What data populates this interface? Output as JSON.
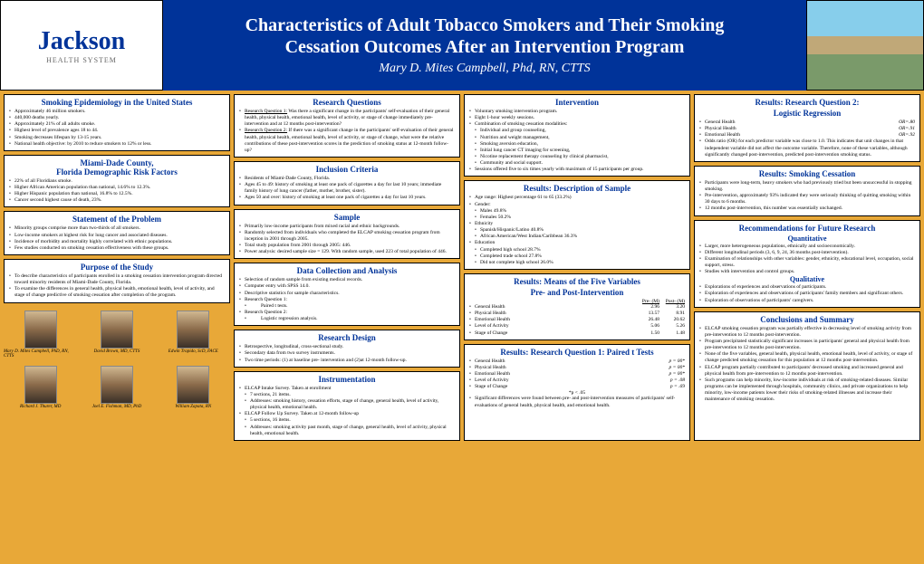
{
  "logo": {
    "main": "Jackson",
    "sub": "HEALTH SYSTEM"
  },
  "title": {
    "line1": "Characteristics of Adult Tobacco Smokers and Their Smoking",
    "line2": "Cessation Outcomes After an Intervention Program",
    "author": "Mary D. Mites Campbell, Phd, RN, CTTS"
  },
  "epi": {
    "h": "Smoking Epidemiology in the United States",
    "items": [
      "Approximately 46 million smokers.",
      "440,000 deaths yearly.",
      "Approximately 21% of all adults smoke.",
      "Highest level of prevalence ages 18 to 44.",
      "Smoking decreases lifespan by 13-15 years.",
      "National health objective: by 2010 to reduce smokers to 12% or less."
    ]
  },
  "miami": {
    "h": "Miami-Dade County,\nFlorida Demographic Risk Factors",
    "items": [
      "22% of all Floridians smoke.",
      "Higher African American population than national, 14.6% to 12.3%.",
      "Higher Hispanic population than national, 16.8% to 12.5%.",
      "Cancer second highest cause of death, 23%."
    ]
  },
  "problem": {
    "h": "Statement of the Problem",
    "items": [
      "Minority groups comprise more than two-thirds of all smokers.",
      "Low-income smokers at highest risk for lung cancer and associated diseases.",
      "Incidence of morbidity and mortality highly correlated with ethnic populations.",
      "Few studies conducted on smoking cessation effectiveness with these groups."
    ]
  },
  "purpose": {
    "h": "Purpose of the Study",
    "items": [
      "To describe characteristics of participants enrolled in a smoking cessation intervention program directed toward minority residents of Miami-Dade County, Florida.",
      "To examine the differences in general health, physical health, emotional health, level of activity, and stage of change predictive of smoking cessation after completion of the program."
    ]
  },
  "people": {
    "row1": [
      {
        "name": "Mary D. Mites Campbell, PhD, RN, CTTS"
      },
      {
        "name": "David Brown, MD, CTTS"
      },
      {
        "name": "Edwin Trapido, ScD, FACE"
      }
    ],
    "row2": [
      {
        "name": "Richard J. Thurer, MD"
      },
      {
        "name": "Joel E. Fishman, MD, PhD"
      },
      {
        "name": "William Zapata, RN"
      }
    ]
  },
  "rq": {
    "h": "Research Questions",
    "q1": "Research Question 1:",
    "q1t": " Was there a significant change in the participants' self-evaluation of their general health, physical health, emotional health, level of activity, or stage of change immediately pre-intervention and at 12 months post-intervention?",
    "q2": "Research Question 2:",
    "q2t": " If there was a significant change in the participants' self-evaluation of their general health, physical health, emotional health, level of activity, or stage of change, what were the relative contributions of these post-intervention scores in the prediction of smoking status at 12-month follow-up?"
  },
  "incl": {
    "h": "Inclusion Criteria",
    "items": [
      "Residents of Miami-Dade County, Florida.",
      "Ages 45 to 49: history of smoking at least one pack of cigarettes a day for last 10 years; immediate family history of lung cancer (father, mother, brother, sister).",
      "Ages 50 and over: history of smoking at least one pack of cigarettes a day for last 10 years."
    ]
  },
  "sample": {
    "h": "Sample",
    "items": [
      "Primarily low-income participants from mixed racial and ethnic backgrounds.",
      "Randomly selected from individuals who completed the ELCAP smoking cessation program from inception in 2001 through 2005.",
      "Total study population from 2001 through 2005: 446.",
      "Power analysis: desired sample size = 129. With random sample, used 223 of total population of 446."
    ]
  },
  "data": {
    "h": "Data Collection and Analysis",
    "items": [
      "Selection of random sample from existing medical records.",
      "Computer entry with SPSS 14.0.",
      "Descriptive statistics for sample characteristics.",
      "Research Question 1:",
      "Paired t tests.",
      "Research Question 2:",
      "Logistic regression analysis."
    ]
  },
  "design": {
    "h": "Research Design",
    "items": [
      "Retrospective, longitudinal, cross-sectional study.",
      "Secondary data from two survey instruments.",
      "Two time periods: (1) at baseline pre- intervention and (2)at 12-month follow-up."
    ]
  },
  "instr": {
    "h": "Instrumentation",
    "items": [
      "ELCAP Intake Survey. Taken at enrollment",
      "7 sections, 21 items.",
      "Addresses: smoking history, cessation efforts, stage of change, general health, level of activity, physical health, emotional health.",
      "ELCAP Follow Up Survey. Taken at 12-month follow-up",
      "5 sections, 16 items.",
      "Addresses: smoking activity past month, stage of change, general health, level of activity, physical health, emotional health."
    ]
  },
  "interv": {
    "h": "Intervention",
    "items": [
      "Voluntary smoking intervention program.",
      "Eight 1-hour weekly sessions.",
      "Combination of smoking cessation modalities:",
      "Individual and group counseling,",
      "Nutrition and weight management,",
      "Smoking aversion education,",
      "Initial lung cancer CT imaging for screening,",
      "Nicotine replacement therapy counseling by clinical pharmacist,",
      "Community and social support.",
      "Sessions offered five to six times yearly with maximum of 15 participants per group."
    ]
  },
  "desc": {
    "h": "Results: Description of Sample",
    "items": [
      "Age range: Highest percentage 61 to 65 (33.2%)",
      "Gender:",
      "Males        49.8%",
      "Females    50.2%",
      "Ethnicity",
      "Spanish/Hispanic/Latino 40.8%",
      "African American/West Indian/Caribbean 36.3%",
      "Education",
      "Completed high school 28.7%",
      "Completed trade school 27.8%",
      "Did not complete high school 26.0%"
    ]
  },
  "means": {
    "h": "Results: Means of the Five Variables",
    "h2": "Pre- and Post-Intervention",
    "hdr": {
      "c1": "Pre- (M)",
      "c2": "Post- (M)"
    },
    "rows": [
      {
        "l": "General Health",
        "v1": "2.96",
        "v2": "3.20"
      },
      {
        "l": "Physical Health",
        "v1": "13.57",
        "v2": "8.91"
      },
      {
        "l": "Emotional Health",
        "v1": "26.48",
        "v2": "20.62"
      },
      {
        "l": "Level of Activity",
        "v1": "5.06",
        "v2": "5.26"
      },
      {
        "l": "Stage of Change",
        "v1": "1.50",
        "v2": "1.48"
      }
    ]
  },
  "rq1": {
    "h": "Results: Research Question 1: Paired t Tests",
    "rows": [
      {
        "l": "General Health",
        "p": "p = 00*"
      },
      {
        "l": "Physical Health",
        "p": "p = 00*"
      },
      {
        "l": "Emotional Health",
        "p": "p = 00*"
      },
      {
        "l": "Level of Activity",
        "p": "p = .08"
      },
      {
        "l": "Stage of Change",
        "p": "p = .69"
      }
    ],
    "note": "*p < .05",
    "sig": "Significant differences were found between pre- and post-intervention measures of participants' self-evaluations of general health, physical health, and emotional health."
  },
  "rq2": {
    "h": "Results: Research Question 2:",
    "h2": "Logistic Regression",
    "rows": [
      {
        "l": "General Health",
        "r": "OR=.80"
      },
      {
        "l": "Physical Health",
        "r": "OR=.91"
      },
      {
        "l": "Emotional Health",
        "r": "OR=.92"
      }
    ],
    "items": [
      "Odds ratio (OR) for each predictor variable was close to 1.0. This indicates that unit changes in that independent variable did not affect the outcome variable. Therefore, none of these variables, although significantly changed post-intervention, predicted post-intervention smoking status."
    ]
  },
  "cess": {
    "h": "Results: Smoking Cessation",
    "items": [
      "Participants were long-term, heavy smokers who had previously tried but been unsuccessful in stopping smoking.",
      "Pre-intervention, approximately 93% indicated they were seriously thinking of quitting smoking within 30 days to 6 months.",
      "12 months post-intervention, this number was essentially unchanged."
    ]
  },
  "rec": {
    "h": "Recommendations for Future Research",
    "quant": "Quantitative",
    "quanti": [
      "Larger, more heterogeneous populations, ethnically and socioeconomically.",
      "Different longitudinal periods (3, 6, 9, 24, 36 months post-intervention).",
      "Examination of relationships with other variables: gender, ethnicity, educational level, occupation, social support, stress.",
      "Studies with intervention and control groups."
    ],
    "qual": "Qualitative",
    "quali": [
      "Explorations of experiences and observations of participants.",
      "Exploration of experiences and observations of participants' family members and significant others.",
      "Exploration of observations of participants' caregivers."
    ]
  },
  "concl": {
    "h": "Conclusions and Summary",
    "items": [
      "ELCAP smoking cessation program was partially effective in decreasing level of smoking activity from pre-intervention to 12 months post-intervention.",
      "Program precipitated statistically significant increases in participants' general and physical health from pre-intervention to 12 months post-intervention.",
      "None of the five variables, general health, physical health, emotional health, level of activity, or stage of change predicted smoking cessation for this population at 12 months post-intervention.",
      "ELCAP program partially contributed to participants' decreased smoking and increased general and physical health from pre-intervention to 12 months post-intervention.",
      "Such programs can help minority, low-income individuals at risk of smoking-related diseases. Similar programs can be implemented through hospitals, community clinics, and private organizations to help minority, low-income patients lower their risks of smoking-related illnesses and increase their maintenance of smoking cessation."
    ]
  }
}
